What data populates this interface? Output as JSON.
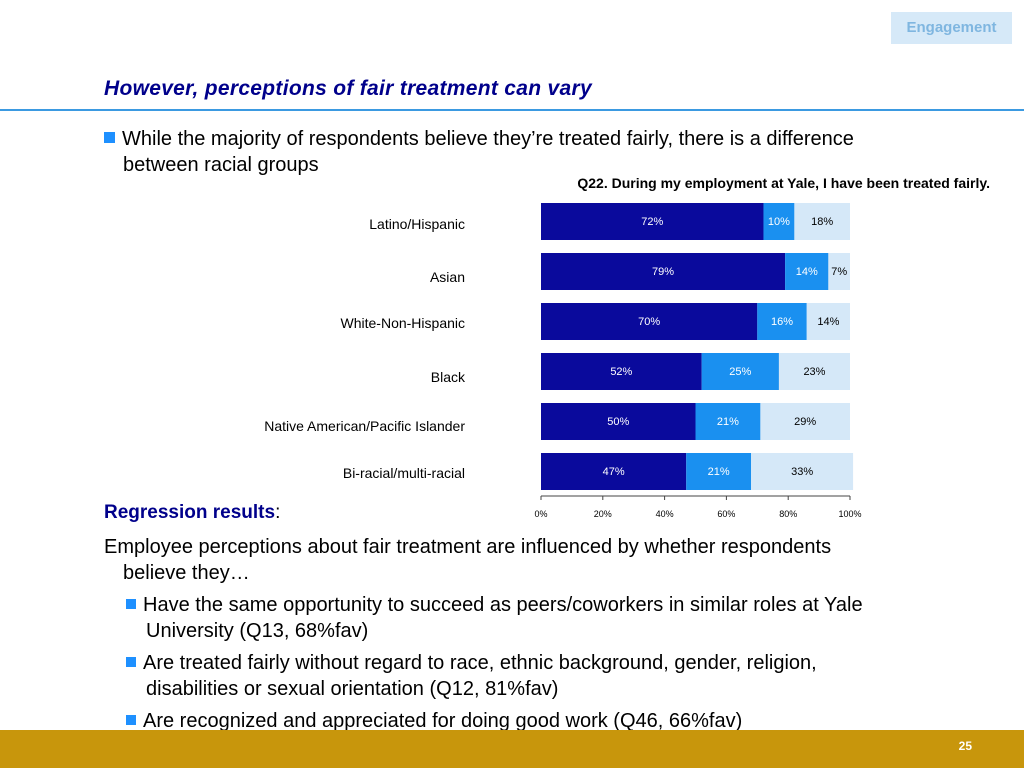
{
  "header": {
    "section_tag": "Engagement",
    "title": "However, perceptions of fair treatment can vary"
  },
  "intro": {
    "line1": "While the majority of respondents believe they’re treated fairly, there is a difference",
    "line2": "between racial groups"
  },
  "chart_data": {
    "type": "bar",
    "orientation": "horizontal",
    "stacked": true,
    "title": "Q22. During my employment at Yale, I have been treated fairly.",
    "categories": [
      "Latino/Hispanic",
      "Asian",
      "White-Non-Hispanic",
      "Black",
      "Native American/Pacific Islander",
      "Bi-racial/multi-racial"
    ],
    "series": [
      {
        "values": [
          72,
          79,
          70,
          52,
          50,
          47
        ],
        "color": "#0a0a9c",
        "label_color": "#ffffff"
      },
      {
        "values": [
          10,
          14,
          16,
          25,
          21,
          21
        ],
        "color": "#1a90f0",
        "label_color": "#ffffff"
      },
      {
        "values": [
          18,
          7,
          14,
          23,
          29,
          33
        ],
        "color": "#d5e8f8",
        "label_color": "#000000"
      }
    ],
    "value_suffix": "%",
    "xlim": [
      0,
      100
    ],
    "x_ticks": [
      "0%",
      "20%",
      "40%",
      "60%",
      "80%",
      "100%"
    ],
    "grid": false,
    "legend": "none"
  },
  "regression": {
    "heading": "Regression results",
    "colon": ":",
    "text_line1": "Employee perceptions about fair treatment are influenced by whether respondents",
    "text_line2": "believe they…",
    "items": [
      {
        "line1": "Have the same opportunity to succeed as peers/coworkers in similar roles at Yale",
        "line2": "University (Q13, 68%fav)"
      },
      {
        "line1": "Are treated fairly without regard to race, ethnic background, gender, religion,",
        "line2": "disabilities or sexual orientation (Q12, 81%fav)"
      },
      {
        "line1": "Are recognized and appreciated for doing good work (Q46, 66%fav)",
        "line2": ""
      }
    ]
  },
  "footer": {
    "page_number": "25",
    "color": "#c8960c"
  }
}
